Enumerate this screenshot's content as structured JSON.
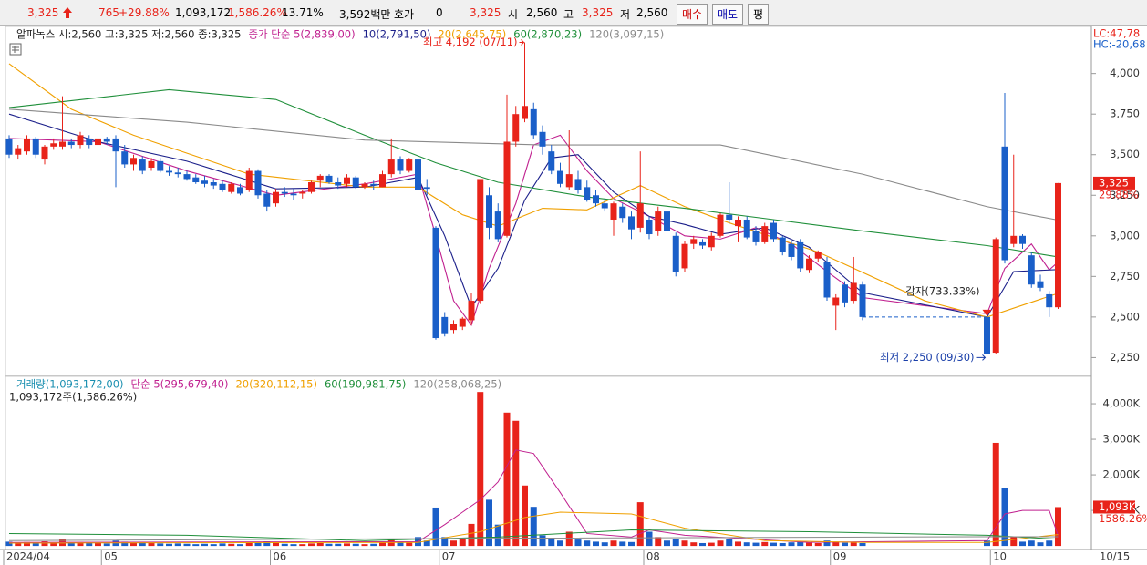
{
  "toolbar": {
    "price": "3,325",
    "change": "765",
    "change_pct": "+29.88%",
    "volume": "1,093,172",
    "volume_pct": "1,586.26%",
    "turnover": "13.71%",
    "amount": "3,592백만",
    "quote_label": "호가",
    "quote": "0",
    "quote_price": "3,325",
    "open_label": "시",
    "open": "2,560",
    "high_label": "고",
    "high": "3,325",
    "low_label": "저",
    "low": "2,560",
    "buttons": [
      "매수",
      "매도",
      "평"
    ]
  },
  "chart_data": [
    {
      "type": "candlestick",
      "title": "알파녹스 시:2,560 고:3,325 저:2,560 종:3,325",
      "up_color": "#e8231a",
      "down_color": "#1a5fc9",
      "candles": [
        [
          3600,
          3620,
          3480,
          3500
        ],
        [
          3500,
          3560,
          3470,
          3540
        ],
        [
          3520,
          3620,
          3500,
          3600
        ],
        [
          3600,
          3610,
          3480,
          3500
        ],
        [
          3470,
          3560,
          3440,
          3550
        ],
        [
          3550,
          3600,
          3530,
          3570
        ],
        [
          3550,
          3860,
          3530,
          3580
        ],
        [
          3580,
          3600,
          3540,
          3560
        ],
        [
          3560,
          3640,
          3540,
          3620
        ],
        [
          3600,
          3620,
          3540,
          3560
        ],
        [
          3560,
          3620,
          3550,
          3600
        ],
        [
          3600,
          3610,
          3560,
          3580
        ],
        [
          3600,
          3620,
          3300,
          3520
        ],
        [
          3520,
          3560,
          3420,
          3440
        ],
        [
          3440,
          3500,
          3400,
          3480
        ],
        [
          3470,
          3490,
          3380,
          3400
        ],
        [
          3420,
          3480,
          3400,
          3460
        ],
        [
          3460,
          3480,
          3390,
          3400
        ],
        [
          3400,
          3430,
          3370,
          3390
        ],
        [
          3390,
          3420,
          3360,
          3380
        ],
        [
          3380,
          3400,
          3340,
          3350
        ],
        [
          3360,
          3380,
          3320,
          3330
        ],
        [
          3340,
          3370,
          3300,
          3320
        ],
        [
          3330,
          3350,
          3290,
          3310
        ],
        [
          3320,
          3340,
          3270,
          3280
        ],
        [
          3270,
          3330,
          3260,
          3320
        ],
        [
          3300,
          3320,
          3250,
          3260
        ],
        [
          3280,
          3420,
          3270,
          3400
        ],
        [
          3400,
          3410,
          3230,
          3250
        ],
        [
          3260,
          3280,
          3150,
          3180
        ],
        [
          3200,
          3290,
          3180,
          3270
        ],
        [
          3270,
          3300,
          3240,
          3260
        ],
        [
          3260,
          3290,
          3220,
          3250
        ],
        [
          3260,
          3280,
          3230,
          3270
        ],
        [
          3270,
          3340,
          3260,
          3330
        ],
        [
          3340,
          3380,
          3300,
          3370
        ],
        [
          3370,
          3380,
          3320,
          3330
        ],
        [
          3330,
          3360,
          3290,
          3310
        ],
        [
          3320,
          3380,
          3300,
          3360
        ],
        [
          3360,
          3370,
          3290,
          3300
        ],
        [
          3300,
          3330,
          3290,
          3320
        ],
        [
          3320,
          3340,
          3280,
          3310
        ],
        [
          3300,
          3400,
          3300,
          3380
        ],
        [
          3380,
          3600,
          3360,
          3470
        ],
        [
          3470,
          3490,
          3380,
          3400
        ],
        [
          3400,
          3480,
          3390,
          3470
        ],
        [
          3470,
          4000,
          3260,
          3280
        ],
        [
          3300,
          3350,
          3250,
          3290
        ],
        [
          3050,
          3060,
          2360,
          2370
        ],
        [
          2500,
          2530,
          2380,
          2400
        ],
        [
          2420,
          2480,
          2400,
          2460
        ],
        [
          2440,
          2500,
          2420,
          2490
        ],
        [
          2480,
          2650,
          2450,
          2600
        ],
        [
          2600,
          3350,
          2580,
          3350
        ],
        [
          3250,
          3300,
          2980,
          3050
        ],
        [
          3150,
          3200,
          2960,
          2980
        ],
        [
          3000,
          3870,
          2990,
          3580
        ],
        [
          3580,
          3800,
          3550,
          3750
        ],
        [
          3720,
          4192,
          3700,
          3800
        ],
        [
          3780,
          3820,
          3600,
          3620
        ],
        [
          3640,
          3680,
          3500,
          3550
        ],
        [
          3520,
          3560,
          3380,
          3400
        ],
        [
          3400,
          3450,
          3300,
          3320
        ],
        [
          3300,
          3650,
          3280,
          3380
        ],
        [
          3350,
          3400,
          3260,
          3280
        ],
        [
          3300,
          3340,
          3210,
          3220
        ],
        [
          3250,
          3280,
          3180,
          3200
        ],
        [
          3200,
          3230,
          3150,
          3170
        ],
        [
          3100,
          3210,
          3000,
          3200
        ],
        [
          3180,
          3200,
          3080,
          3110
        ],
        [
          3120,
          3150,
          2980,
          3040
        ],
        [
          3050,
          3520,
          3020,
          3200
        ],
        [
          3100,
          3120,
          2980,
          3010
        ],
        [
          3030,
          3180,
          3000,
          3150
        ],
        [
          3150,
          3170,
          3010,
          3030
        ],
        [
          3000,
          3020,
          2750,
          2780
        ],
        [
          2800,
          2970,
          2780,
          2950
        ],
        [
          2950,
          3000,
          2920,
          2980
        ],
        [
          2960,
          2980,
          2920,
          2940
        ],
        [
          2930,
          3020,
          2910,
          3000
        ],
        [
          3000,
          3140,
          2990,
          3130
        ],
        [
          3130,
          3330,
          3080,
          3100
        ],
        [
          3060,
          3120,
          2960,
          3100
        ],
        [
          3100,
          3120,
          2980,
          2990
        ],
        [
          3030,
          3060,
          2940,
          2960
        ],
        [
          2960,
          3080,
          2950,
          3060
        ],
        [
          3080,
          3100,
          2960,
          2980
        ],
        [
          2990,
          3000,
          2880,
          2900
        ],
        [
          2950,
          2970,
          2850,
          2870
        ],
        [
          2960,
          2980,
          2780,
          2800
        ],
        [
          2790,
          2880,
          2770,
          2860
        ],
        [
          2860,
          2910,
          2840,
          2900
        ],
        [
          2840,
          2870,
          2600,
          2620
        ],
        [
          2570,
          2640,
          2420,
          2620
        ],
        [
          2700,
          2720,
          2560,
          2590
        ],
        [
          2600,
          2870,
          2580,
          2710
        ],
        [
          2700,
          2720,
          2480,
          2500
        ],
        null,
        null,
        null,
        null,
        null,
        null,
        null,
        null,
        null,
        null,
        null,
        null,
        null,
        [
          2500,
          2530,
          2250,
          2270
        ],
        [
          2280,
          2990,
          2270,
          2980
        ],
        [
          3550,
          3880,
          2830,
          2850
        ],
        [
          2950,
          3500,
          2930,
          3000
        ],
        [
          3000,
          3010,
          2920,
          2950
        ],
        [
          2880,
          2900,
          2680,
          2700
        ],
        [
          2720,
          2760,
          2660,
          2680
        ],
        [
          2640,
          2660,
          2500,
          2560
        ],
        [
          2560,
          3325,
          2550,
          3325
        ]
      ],
      "series": [
        {
          "name": "종가 단순 5(2,839,00)",
          "color": "#c0208f",
          "x": [
            0,
            10,
            20,
            30,
            40,
            46,
            48,
            50,
            52,
            54,
            57,
            59,
            62,
            65,
            68,
            72,
            76,
            80,
            84,
            88,
            92,
            96,
            110,
            112,
            115,
            117,
            118
          ],
          "values": [
            3600,
            3580,
            3400,
            3250,
            3320,
            3380,
            3000,
            2600,
            2450,
            2800,
            3200,
            3560,
            3620,
            3400,
            3230,
            3120,
            3000,
            2980,
            3050,
            2950,
            2780,
            2620,
            2520,
            2800,
            2950,
            2790,
            2839
          ]
        },
        {
          "name": "10(2,791,50)",
          "color": "#1b1f8a",
          "x": [
            0,
            10,
            20,
            30,
            40,
            46,
            49,
            52,
            55,
            58,
            61,
            64,
            68,
            72,
            76,
            80,
            85,
            90,
            96,
            110,
            113,
            118
          ],
          "values": [
            3750,
            3580,
            3460,
            3290,
            3300,
            3360,
            3000,
            2560,
            2800,
            3220,
            3480,
            3500,
            3270,
            3120,
            3070,
            3010,
            3050,
            2930,
            2650,
            2500,
            2780,
            2792
          ]
        },
        {
          "name": "20(2,645,75)",
          "color": "#f0a000",
          "x": [
            0,
            7,
            14,
            27,
            40,
            46,
            51,
            55,
            60,
            65,
            71,
            76,
            81,
            91,
            103,
            110,
            118
          ],
          "values": [
            4060,
            3780,
            3620,
            3380,
            3300,
            3300,
            3130,
            3060,
            3170,
            3160,
            3310,
            3180,
            3080,
            2900,
            2600,
            2500,
            2646
          ]
        },
        {
          "name": "60(2,870,23)",
          "color": "#1f8f3a",
          "x": [
            0,
            18,
            30,
            40,
            48,
            55,
            65,
            76,
            86,
            96,
            110,
            118
          ],
          "values": [
            3790,
            3900,
            3840,
            3620,
            3450,
            3330,
            3240,
            3170,
            3100,
            3030,
            2940,
            2870
          ]
        },
        {
          "name": "120(3,097,15)",
          "color": "#8a8a8a",
          "x": [
            0,
            20,
            40,
            60,
            80,
            96,
            110,
            118
          ],
          "values": [
            3780,
            3700,
            3590,
            3560,
            3560,
            3380,
            3180,
            3097
          ]
        }
      ],
      "ylim": [
        2140,
        4290
      ],
      "yticks": [
        {
          "value": 2250,
          "label": "2,250"
        },
        {
          "value": 2500,
          "label": "2,500"
        },
        {
          "value": 2750,
          "label": "2,750"
        },
        {
          "value": 3000,
          "label": "3,000"
        },
        {
          "value": 3250,
          "label": "3,250"
        },
        {
          "value": 3500,
          "label": "3,500"
        },
        {
          "value": 3750,
          "label": "3,750"
        },
        {
          "value": 4000,
          "label": "4,000"
        }
      ],
      "annotations": {
        "high": "최고 4,192 (07/11)",
        "low": "최저 2,250 (09/30)",
        "event": "감자(733.33%)"
      },
      "lc": "LC:47,78",
      "hc": "HC:-20,68",
      "last_price": {
        "value": 3325,
        "label": "3,325"
      },
      "last_change": "29.88%",
      "x_labels": [
        {
          "value": 0,
          "label": "2024/04"
        },
        {
          "value": 11,
          "label": "05"
        },
        {
          "value": 30,
          "label": "06"
        },
        {
          "value": 49,
          "label": "07"
        },
        {
          "value": 72,
          "label": "08"
        },
        {
          "value": 93,
          "label": "09"
        },
        {
          "value": 111,
          "label": "10"
        }
      ],
      "end_label": "10/15"
    },
    {
      "type": "bar",
      "title": "1,093,172주(1,586.26%)",
      "bar_name": "거래량(1,093,172,00)",
      "bar_legend_color": "#1a8fb0",
      "values": [
        120,
        90,
        110,
        100,
        130,
        80,
        200,
        90,
        110,
        80,
        100,
        70,
        150,
        120,
        90,
        100,
        80,
        70,
        60,
        70,
        60,
        50,
        60,
        50,
        70,
        60,
        50,
        110,
        100,
        130,
        90,
        60,
        50,
        50,
        70,
        80,
        60,
        60,
        70,
        60,
        50,
        60,
        90,
        180,
        100,
        90,
        250,
        150,
        1080,
        250,
        150,
        200,
        620,
        4330,
        1300,
        600,
        3750,
        3520,
        1700,
        1100,
        300,
        220,
        150,
        400,
        180,
        150,
        120,
        100,
        150,
        120,
        110,
        1230,
        400,
        250,
        150,
        200,
        150,
        100,
        80,
        90,
        150,
        200,
        120,
        100,
        90,
        110,
        90,
        80,
        100,
        120,
        90,
        80,
        150,
        120,
        90,
        110,
        80,
        null,
        null,
        null,
        null,
        null,
        null,
        null,
        null,
        null,
        null,
        null,
        null,
        null,
        150,
        2900,
        1640,
        250,
        120,
        150,
        100,
        150,
        1093
      ],
      "series": [
        {
          "name": "단순 5(295,679,40)",
          "color": "#c0208f",
          "x": [
            0,
            46,
            49,
            53,
            55,
            57,
            59,
            62,
            65,
            70,
            72,
            76,
            90,
            110,
            112,
            114,
            117,
            118
          ],
          "values": [
            100,
            120,
            600,
            1300,
            1800,
            2700,
            2600,
            1500,
            350,
            250,
            450,
            300,
            100,
            150,
            900,
            1000,
            1000,
            296
          ]
        },
        {
          "name": "20(320,112,15)",
          "color": "#f0a000",
          "x": [
            0,
            46,
            53,
            58,
            62,
            70,
            76,
            85,
            96,
            110,
            118
          ],
          "values": [
            80,
            100,
            400,
            800,
            950,
            900,
            500,
            150,
            100,
            100,
            320
          ]
        },
        {
          "name": "60(190,981,75)",
          "color": "#1f8f3a",
          "x": [
            0,
            20,
            40,
            55,
            70,
            90,
            110,
            118
          ],
          "values": [
            350,
            300,
            150,
            250,
            450,
            400,
            300,
            191
          ]
        },
        {
          "name": "120(258,068,25)",
          "color": "#8a8a8a",
          "x": [
            0,
            60,
            110,
            118
          ],
          "values": [
            150,
            220,
            260,
            258
          ]
        }
      ],
      "ylim": [
        -100,
        4770
      ],
      "yticks": [
        {
          "value": 1000,
          "label": "1,000K"
        },
        {
          "value": 2000,
          "label": "2,000K"
        },
        {
          "value": 3000,
          "label": "3,000K"
        },
        {
          "value": 4000,
          "label": "4,000K"
        }
      ],
      "last_label": "1,093K",
      "last_pct": "1586.26%"
    }
  ]
}
